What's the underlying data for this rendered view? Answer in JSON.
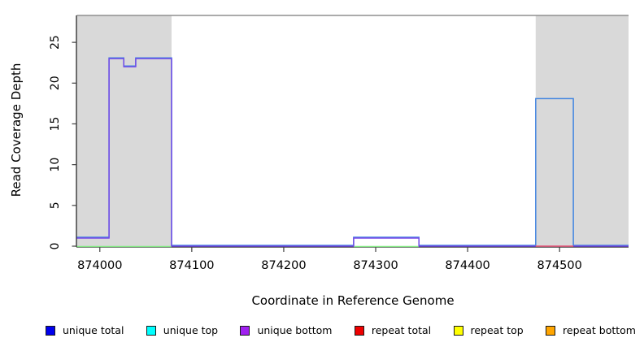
{
  "figure": {
    "band_color": "#d9d9d9",
    "top_border_color": "#8f8f8f",
    "axis_color": "#1a1a1a",
    "tick_color": "#404040",
    "text_color": "#000000"
  },
  "chart_data": {
    "type": "line",
    "subtype": "step-coverage-plot",
    "title": "",
    "xlabel": "Coordinate in Reference Genome",
    "ylabel": "Read Coverage Depth",
    "xlim": [
      873975,
      874575
    ],
    "ylim": [
      0,
      28.3
    ],
    "x_ticks": [
      874000,
      874100,
      874200,
      874300,
      874400,
      874500
    ],
    "y_ticks": [
      0,
      5,
      10,
      15,
      20,
      25
    ],
    "grid": false,
    "legend_position": "bottom",
    "shaded_regions": [
      {
        "from": 873975,
        "to": 874078,
        "note": "repeat-region-band"
      },
      {
        "from": 874474,
        "to": 874575,
        "note": "repeat-region-band"
      }
    ],
    "series": [
      {
        "name": "unique total",
        "render_color": "#4285e0",
        "points": [
          [
            873975,
            1
          ],
          [
            874010,
            1
          ],
          [
            874010,
            23
          ],
          [
            874026,
            23
          ],
          [
            874026,
            22
          ],
          [
            874039,
            22
          ],
          [
            874039,
            23
          ],
          [
            874078,
            23
          ],
          [
            874078,
            0
          ],
          [
            874276,
            0
          ],
          [
            874276,
            1
          ],
          [
            874347,
            1
          ],
          [
            874347,
            0
          ],
          [
            874474,
            0
          ],
          [
            874474,
            18
          ],
          [
            874515,
            18
          ],
          [
            874515,
            0
          ],
          [
            874575,
            0
          ]
        ]
      },
      {
        "name": "unique bottom",
        "render_color": "#7647e8",
        "points": [
          [
            873975,
            1
          ],
          [
            874010,
            1
          ],
          [
            874010,
            23
          ],
          [
            874026,
            23
          ],
          [
            874026,
            22
          ],
          [
            874039,
            22
          ],
          [
            874039,
            23
          ],
          [
            874078,
            23
          ],
          [
            874078,
            0
          ],
          [
            874276,
            0
          ],
          [
            874276,
            1
          ],
          [
            874347,
            1
          ],
          [
            874347,
            0
          ],
          [
            874575,
            0
          ]
        ]
      }
    ],
    "zero_level_segments": [
      {
        "name": "top-strand zero (cyan over yellow blend)",
        "color": "#7fe87f",
        "from": 873975,
        "to": 874078,
        "y": 0
      },
      {
        "name": "top-strand zero (cyan over yellow blend)",
        "color": "#7fe87f",
        "from": 874276,
        "to": 874347,
        "y": 0
      },
      {
        "name": "repeat total zero",
        "color": "#f2606e",
        "from": 874474,
        "to": 874515,
        "y": 0
      }
    ]
  },
  "legend": {
    "items": [
      {
        "label": "unique total",
        "color": "#0000ee"
      },
      {
        "label": "unique top",
        "color": "#00ffff"
      },
      {
        "label": "unique bottom",
        "color": "#a020f0"
      },
      {
        "label": "repeat total",
        "color": "#ee0000"
      },
      {
        "label": "repeat top",
        "color": "#ffff00"
      },
      {
        "label": "repeat bottom",
        "color": "#ffa500"
      }
    ]
  }
}
